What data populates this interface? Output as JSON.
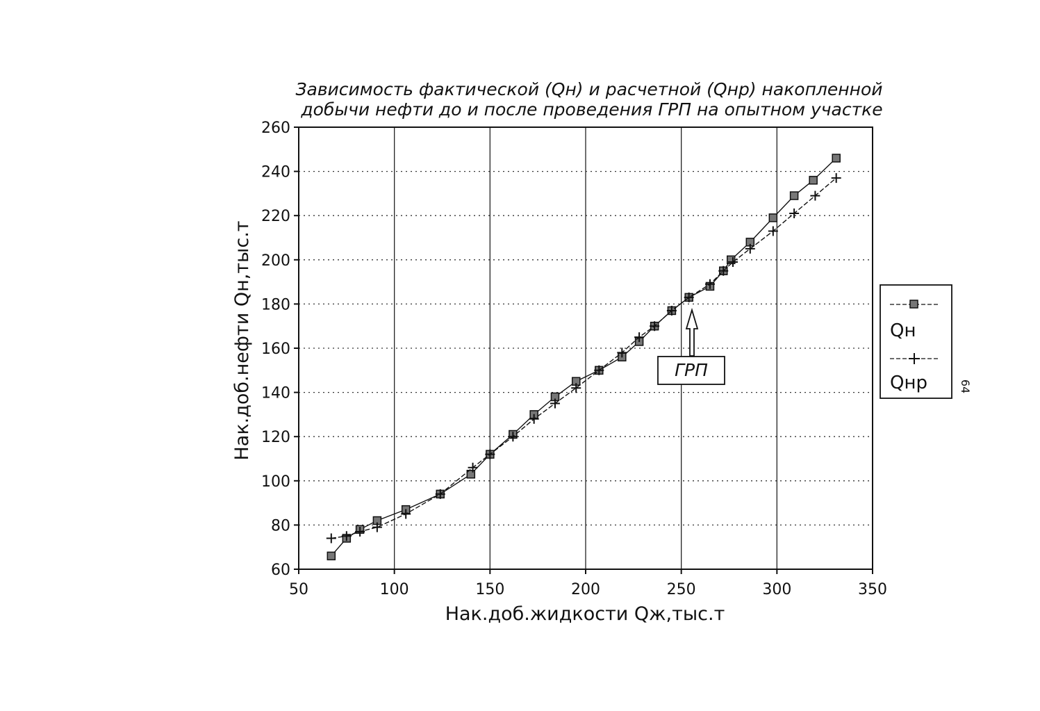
{
  "chart_data": {
    "type": "line",
    "title_line1": "Зависимость фактической (Qн) и расчетной (Qнр) накопленной",
    "title_line2": "добычи нефти до и после проведения ГРП на опытном участке",
    "xlabel": "Нак.доб.жидкости Qж,тыс.т",
    "ylabel": "Нак.доб.нефти Qн,тыс.т",
    "xlim": [
      50,
      350
    ],
    "ylim": [
      60,
      260
    ],
    "xticks": [
      50,
      100,
      150,
      200,
      250,
      300,
      350
    ],
    "yticks": [
      60,
      80,
      100,
      120,
      140,
      160,
      180,
      200,
      220,
      240,
      260
    ],
    "grid": true,
    "legend_position": "right",
    "series": [
      {
        "name": "Qн",
        "marker": "square",
        "points": [
          [
            67,
            66
          ],
          [
            75,
            74
          ],
          [
            82,
            78
          ],
          [
            91,
            82
          ],
          [
            106,
            87
          ],
          [
            124,
            94
          ],
          [
            140,
            103
          ],
          [
            150,
            112
          ],
          [
            162,
            121
          ],
          [
            173,
            130
          ],
          [
            184,
            138
          ],
          [
            195,
            145
          ],
          [
            207,
            150
          ],
          [
            219,
            156
          ],
          [
            228,
            163
          ],
          [
            236,
            170
          ],
          [
            245,
            177
          ],
          [
            254,
            183
          ],
          [
            265,
            188
          ],
          [
            272,
            195
          ],
          [
            276,
            200
          ],
          [
            286,
            208
          ],
          [
            298,
            219
          ],
          [
            309,
            229
          ],
          [
            319,
            236
          ],
          [
            331,
            246
          ]
        ]
      },
      {
        "name": "Qнр",
        "marker": "plus",
        "points": [
          [
            67,
            74
          ],
          [
            75,
            75
          ],
          [
            82,
            77
          ],
          [
            91,
            79
          ],
          [
            106,
            85
          ],
          [
            124,
            94
          ],
          [
            141,
            106
          ],
          [
            150,
            112
          ],
          [
            162,
            120
          ],
          [
            173,
            128
          ],
          [
            184,
            135
          ],
          [
            195,
            142
          ],
          [
            207,
            150
          ],
          [
            219,
            158
          ],
          [
            228,
            165
          ],
          [
            236,
            170
          ],
          [
            245,
            177
          ],
          [
            254,
            183
          ],
          [
            265,
            189
          ],
          [
            272,
            195
          ],
          [
            277,
            199
          ],
          [
            286,
            205
          ],
          [
            298,
            213
          ],
          [
            309,
            221
          ],
          [
            320,
            229
          ],
          [
            331,
            237
          ]
        ]
      }
    ],
    "annotation": {
      "text": "ГРП",
      "x": 254,
      "y": 183
    },
    "page_number": "64"
  }
}
